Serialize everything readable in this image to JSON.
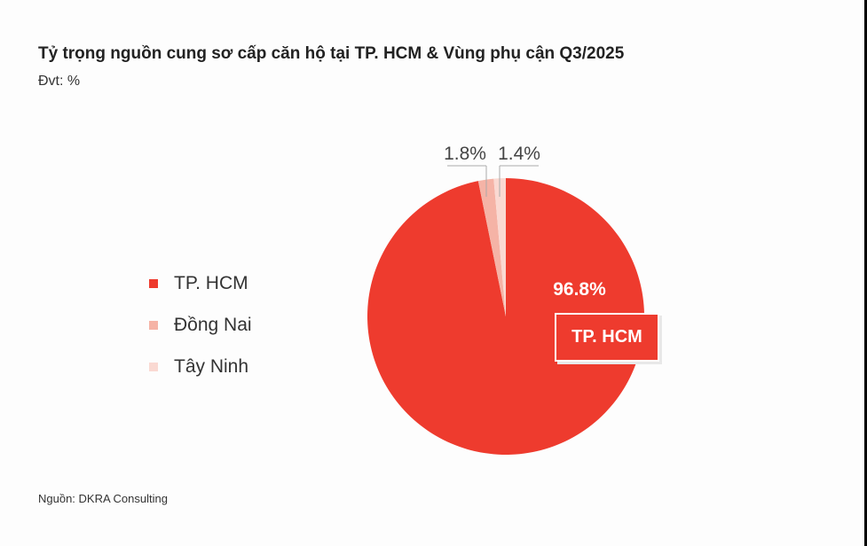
{
  "chart_data": {
    "type": "pie",
    "title": "Tỷ trọng nguồn cung sơ cấp căn hộ tại TP. HCM & Vùng phụ cận Q3/2025",
    "subtitle": "Đvt: %",
    "source": "Nguồn: DKRA Consulting",
    "legend_position": "left",
    "slices": [
      {
        "name": "TP. HCM",
        "value": 96.8,
        "label": "96.8%",
        "color": "#EE3B2E"
      },
      {
        "name": "Đồng Nai",
        "value": 1.8,
        "label": "1.8%",
        "color": "#F5B3A6"
      },
      {
        "name": "Tây Ninh",
        "value": 1.4,
        "label": "1.4%",
        "color": "#FAD9D2"
      }
    ],
    "callout": "TP. HCM"
  }
}
